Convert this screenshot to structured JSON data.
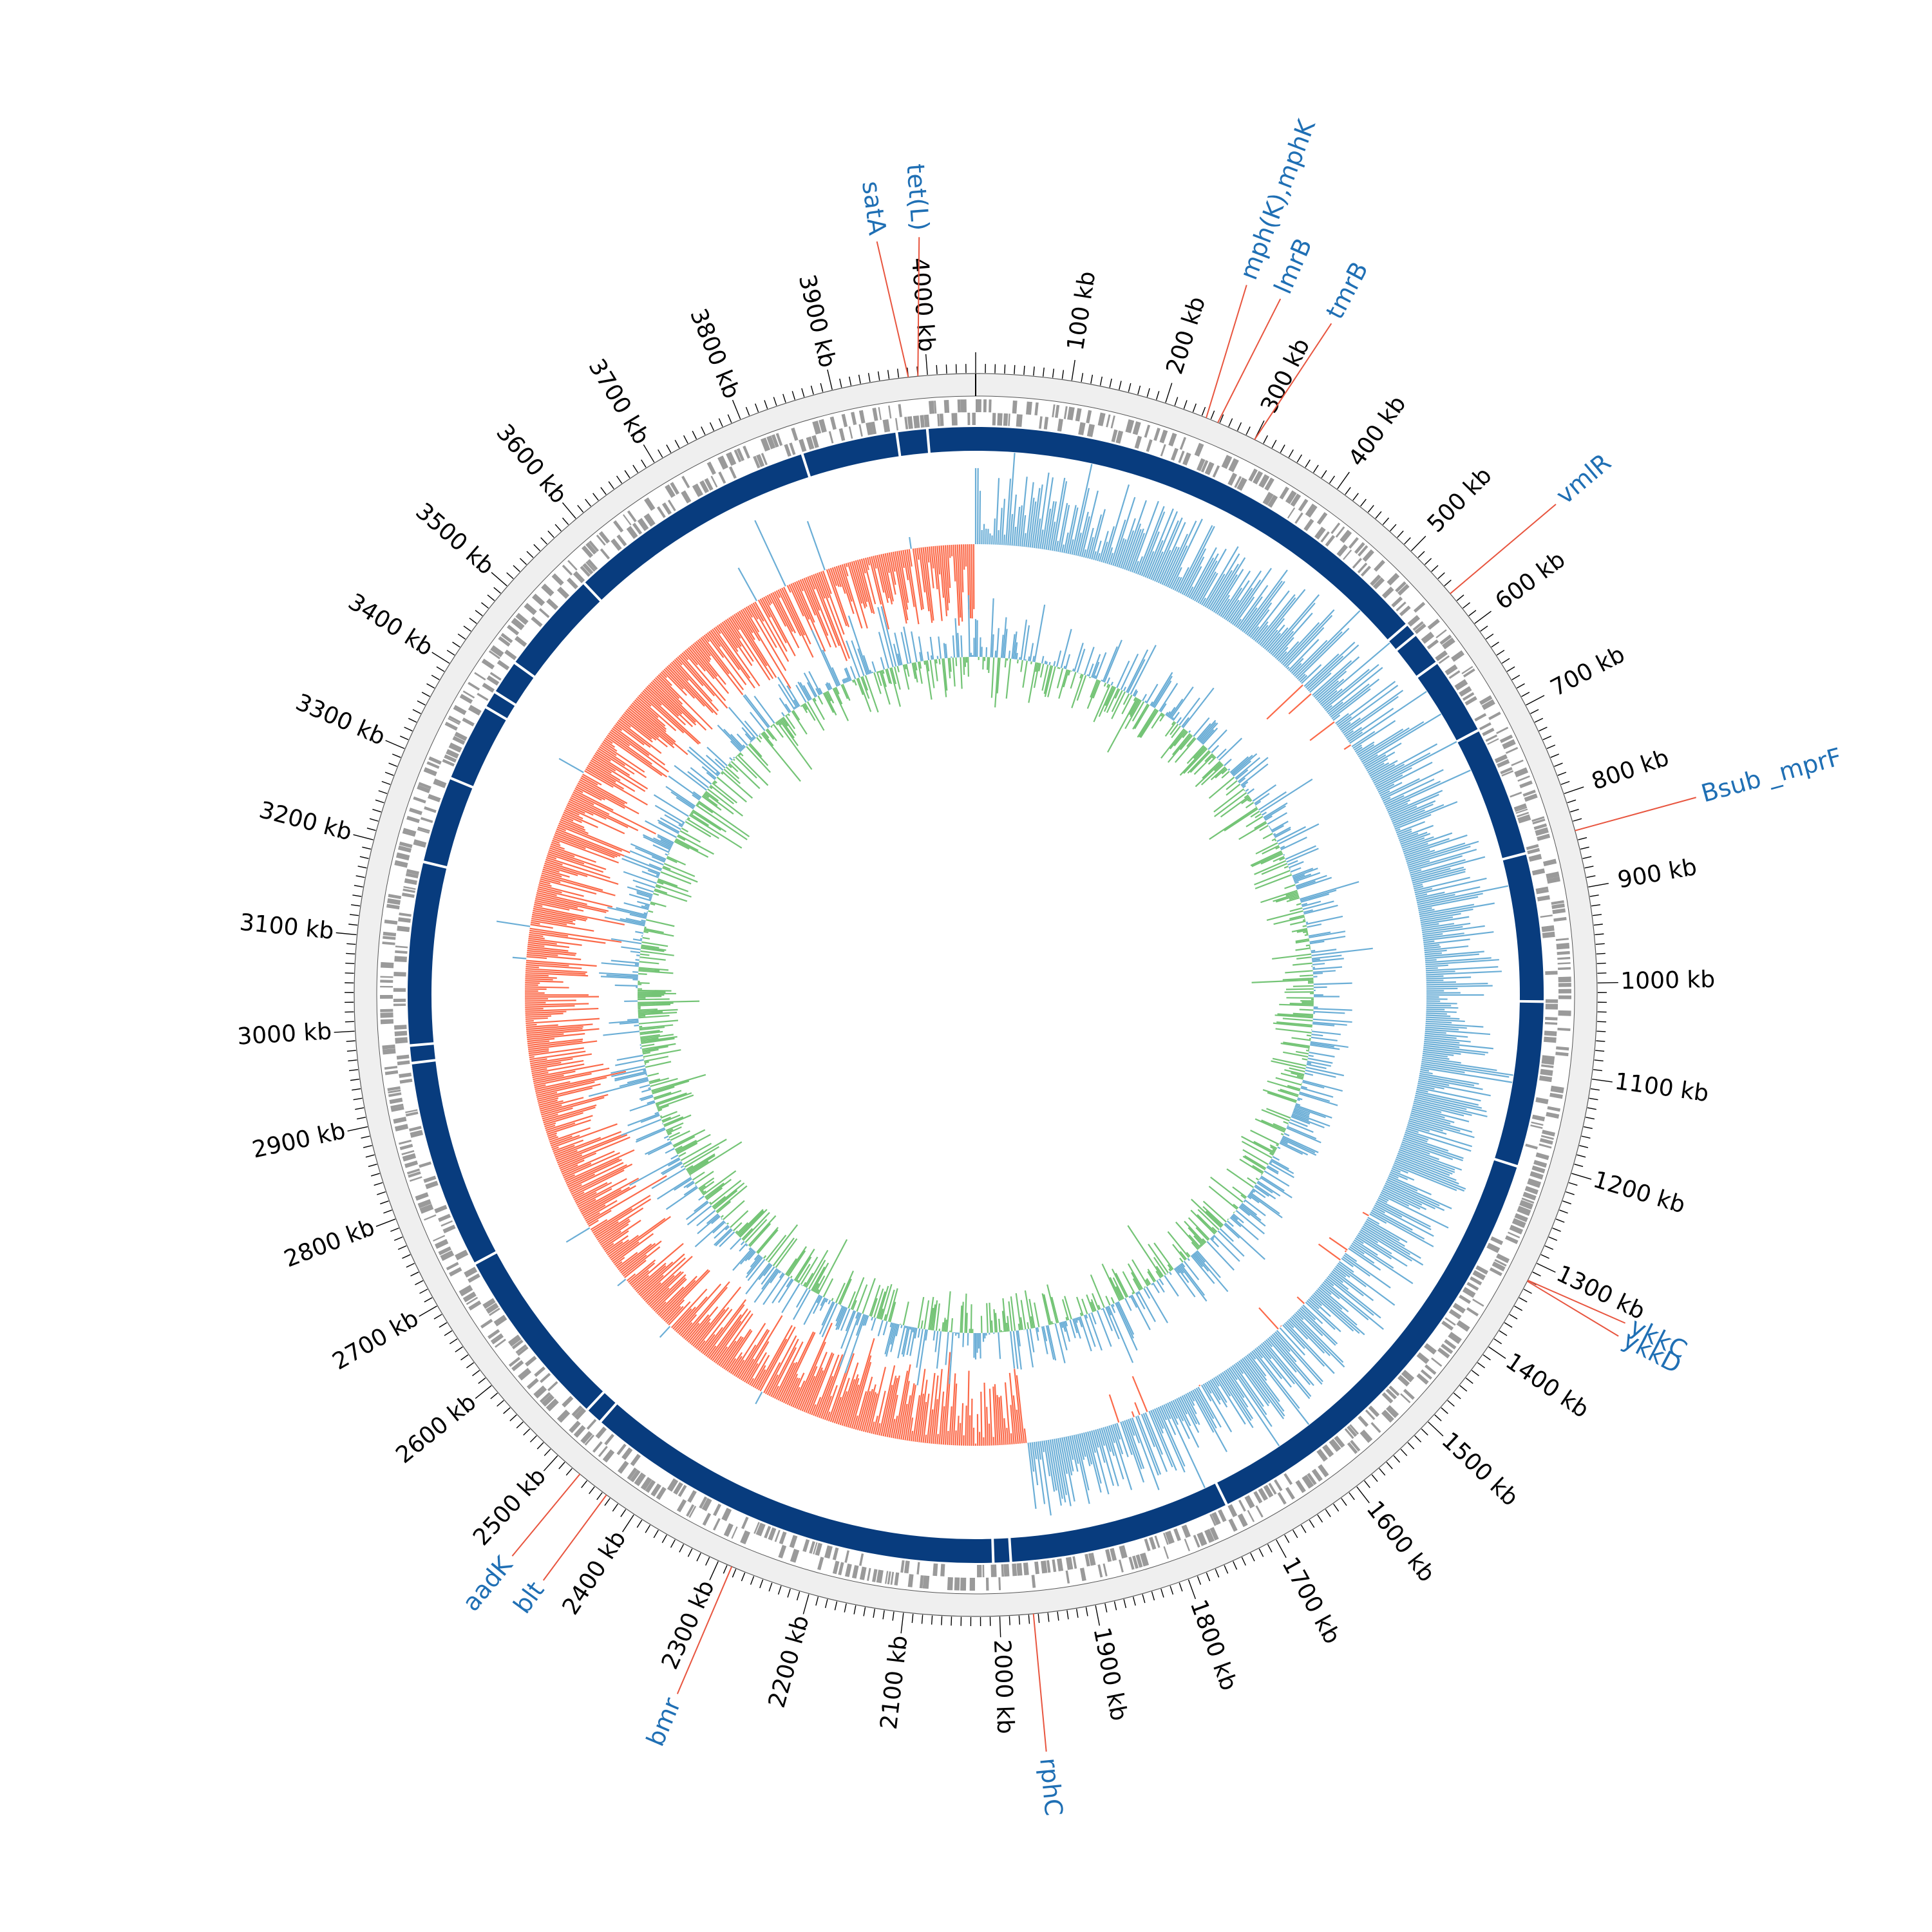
{
  "genome": {
    "length_kb": 4050,
    "tick_unit": "kb",
    "tick_labels": [
      "100 kb",
      "200 kb",
      "300 kb",
      "400 kb",
      "500 kb",
      "600 kb",
      "700 kb",
      "800 kb",
      "900 kb",
      "1000 kb",
      "1100 kb",
      "1200 kb",
      "1300 kb",
      "1400 kb",
      "1500 kb",
      "1600 kb",
      "1700 kb",
      "1800 kb",
      "1900 kb",
      "2000 kb",
      "2100 kb",
      "2200 kb",
      "2300 kb",
      "2400 kb",
      "2500 kb",
      "2600 kb",
      "2700 kb",
      "2800 kb",
      "2900 kb",
      "3000 kb",
      "3100 kb",
      "3200 kb",
      "3300 kb",
      "3400 kb",
      "3500 kb",
      "3600 kb",
      "3700 kb",
      "3800 kb",
      "3900 kb",
      "4000 kb"
    ],
    "tick_positions_kb": [
      100,
      200,
      300,
      400,
      500,
      600,
      700,
      800,
      900,
      1000,
      1100,
      1200,
      1300,
      1400,
      1500,
      1600,
      1700,
      1800,
      1900,
      2000,
      2100,
      2200,
      2300,
      2400,
      2500,
      2600,
      2700,
      2800,
      2900,
      3000,
      3100,
      3200,
      3300,
      3400,
      3500,
      3600,
      3700,
      3800,
      3900,
      4000
    ]
  },
  "annotations": [
    {
      "label": "tet(L)",
      "position_kb": 3990
    },
    {
      "label": "satA",
      "position_kb": 3980
    },
    {
      "label": "mph(K),mphK",
      "position_kb": 245
    },
    {
      "label": "lmrB",
      "position_kb": 258
    },
    {
      "label": "tmrB",
      "position_kb": 300
    },
    {
      "label": "vmlR",
      "position_kb": 560
    },
    {
      "label": "Bsub _mprF",
      "position_kb": 840
    },
    {
      "label": "ykkC",
      "position_kb": 1320
    },
    {
      "label": "ykkD",
      "position_kb": 1321
    },
    {
      "label": "rphC",
      "position_kb": 1965
    },
    {
      "label": "bmr",
      "position_kb": 2285
    },
    {
      "label": "blt",
      "position_kb": 2435
    },
    {
      "label": "aadK",
      "position_kb": 2470
    }
  ],
  "tracks": {
    "outer_ring_color": "#efefef",
    "gene_feature_color": "#9a9a9a",
    "contig_color": "#083c7e",
    "contig_gaps_kb": [
      3995,
      3960,
      3850,
      3560,
      3440,
      3400,
      3380,
      3290,
      3190,
      2980,
      2960,
      2720,
      2510,
      2490,
      2005,
      1985,
      1730,
      1210,
      1020,
      850,
      700,
      610,
      570,
      555
    ],
    "gc_content": {
      "above_color": "#6baed6",
      "below_color": "#fb6a4a",
      "fill_above": "#9ecae1",
      "fill_below": "#fc9272"
    },
    "gc_skew": {
      "positive_color": "#6baed6",
      "negative_color": "#74c476",
      "fill_positive": "#9ecae1",
      "fill_negative": "#a1d99b"
    }
  },
  "colors": {
    "annotation_line": "#e8553f",
    "annotation_text": "#1f6fb4",
    "tick": "#000000"
  }
}
